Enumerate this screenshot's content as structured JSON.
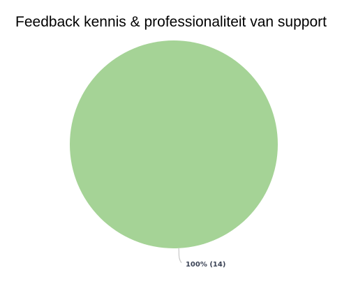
{
  "chart_data": {
    "type": "pie",
    "title": "Feedback kennis & professionaliteit van support",
    "slices": [
      {
        "label": "100% (14)",
        "value": 14,
        "percent": 100,
        "color": "#a5d396"
      }
    ],
    "label_color": "#3a4255",
    "connector_color": "#c8c8c8",
    "legend": "none"
  }
}
